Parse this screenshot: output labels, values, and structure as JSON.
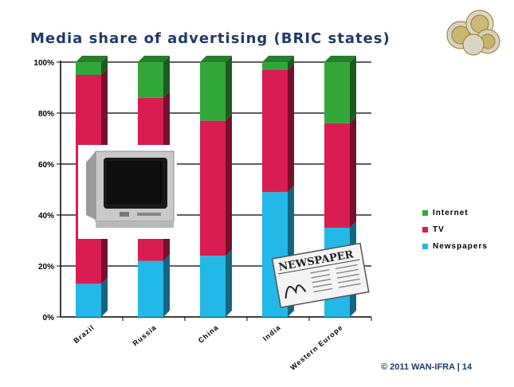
{
  "page": {
    "title": "Media share of advertising (BRIC states)",
    "footer": "© 2011 WAN-IFRA | 14"
  },
  "chart_data": {
    "type": "bar",
    "stacked": true,
    "title": "Media share of advertising (BRIC states)",
    "categories": [
      "Brazil",
      "Russia",
      "China",
      "India",
      "Western Europe"
    ],
    "series": [
      {
        "name": "Newspapers",
        "values": [
          13,
          22,
          24,
          49,
          35
        ],
        "color": "#22b8e8"
      },
      {
        "name": "TV",
        "values": [
          82,
          64,
          53,
          48,
          41
        ],
        "color": "#d91d52"
      },
      {
        "name": "Internet",
        "values": [
          5,
          14,
          23,
          3,
          24
        ],
        "color": "#33a63a"
      }
    ],
    "ylim": [
      0,
      100
    ],
    "yticks": [
      "0%",
      "20%",
      "40%",
      "60%",
      "80%",
      "100%"
    ],
    "grid": true,
    "legend_position": "right"
  },
  "legend": [
    {
      "label": "Internet",
      "color": "#33a63a"
    },
    {
      "label": "TV",
      "color": "#d91d52"
    },
    {
      "label": "Newspapers",
      "color": "#22b8e8"
    }
  ],
  "images": {
    "tv": "television-icon",
    "newspaper_text": "NEWSPAPER",
    "coins": "euro-coins-icon"
  }
}
